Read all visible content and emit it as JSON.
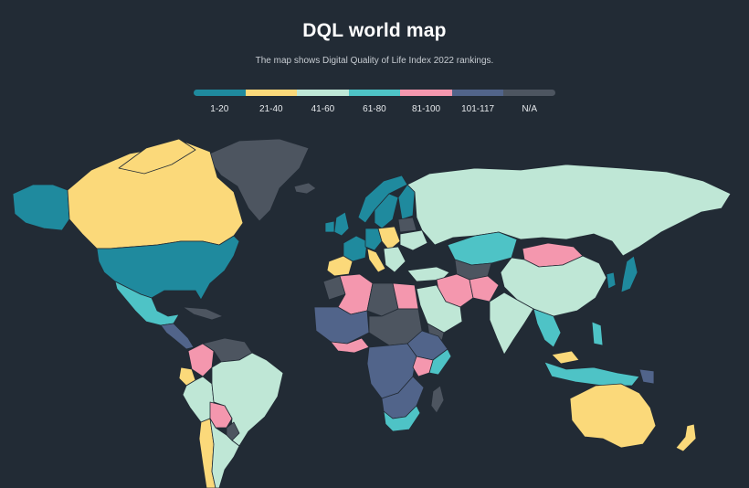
{
  "title": "DQL world map",
  "subtitle": "The map shows Digital Quality of Life Index 2022 rankings.",
  "legend": [
    {
      "label": "1-20",
      "color": "#1f8a9e"
    },
    {
      "label": "21-40",
      "color": "#fbd97a"
    },
    {
      "label": "41-60",
      "color": "#bfe7d6"
    },
    {
      "label": "61-80",
      "color": "#4ec3c6"
    },
    {
      "label": "81-100",
      "color": "#f497ae"
    },
    {
      "label": "101-117",
      "color": "#51648a"
    },
    {
      "label": "N/A",
      "color": "#4d5560"
    }
  ]
}
